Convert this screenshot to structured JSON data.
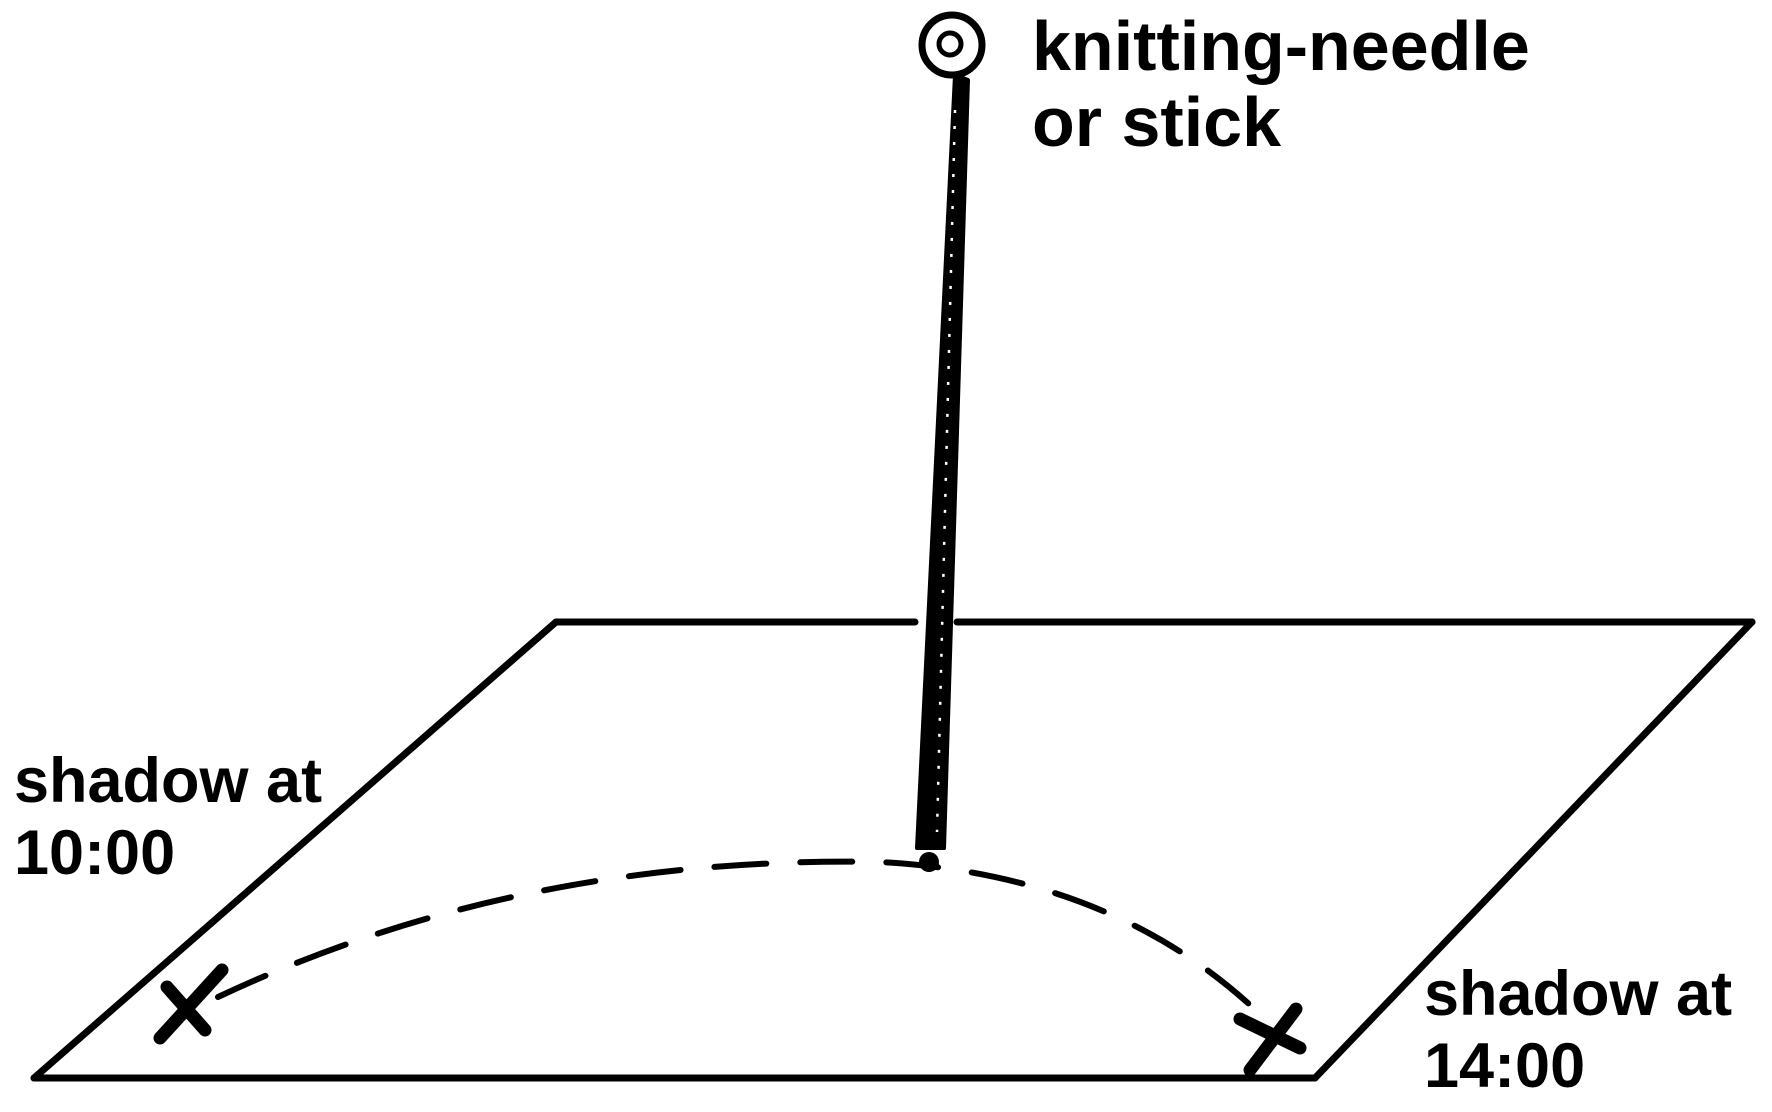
{
  "labels": {
    "needle": [
      "knitting-needle",
      "or stick"
    ],
    "shadow_10": [
      "shadow at",
      "10:00"
    ],
    "shadow_14": [
      "shadow at",
      "14:00"
    ]
  },
  "colors": {
    "ink": "#000000",
    "paper": "#ffffff"
  }
}
